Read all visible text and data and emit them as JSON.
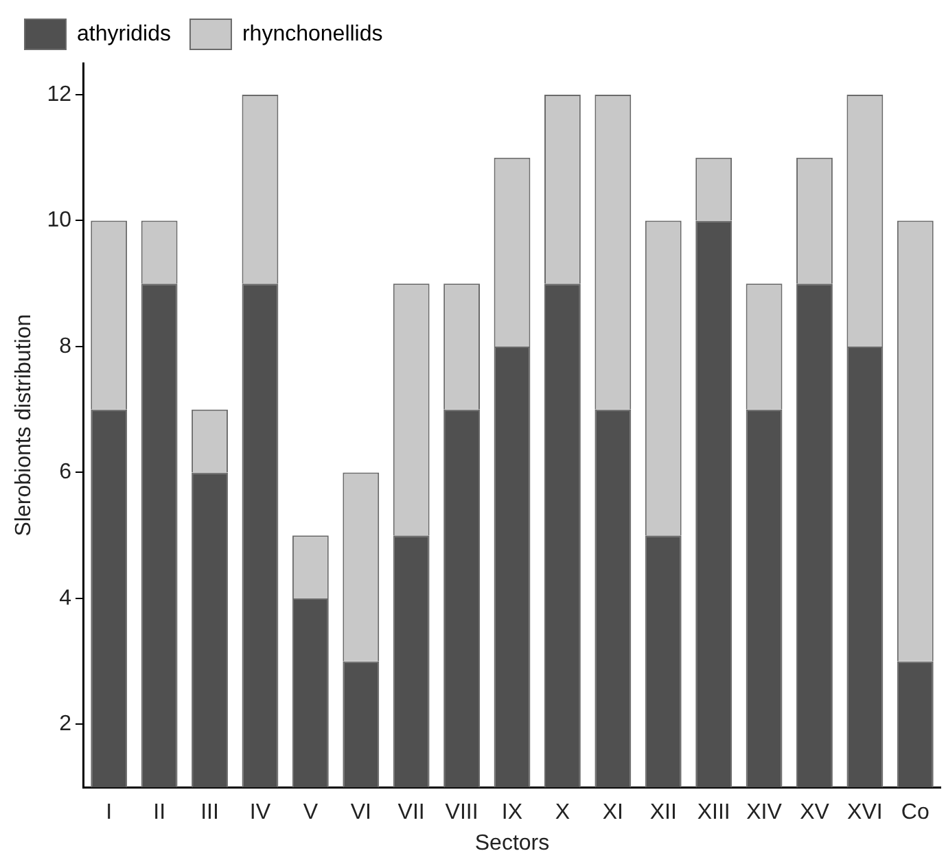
{
  "chart_data": {
    "type": "bar",
    "stacked": true,
    "xlabel": "Sectors",
    "ylabel": "Slerobionts distribution",
    "categories": [
      "I",
      "II",
      "III",
      "IV",
      "V",
      "VI",
      "VII",
      "VIII",
      "IX",
      "X",
      "XI",
      "XII",
      "XIII",
      "XIV",
      "XV",
      "XVI",
      "Co"
    ],
    "series": [
      {
        "name": "athyridids",
        "color": "#505050",
        "values": [
          7,
          9,
          6,
          9,
          4,
          3,
          5,
          7,
          8,
          9,
          7,
          5,
          10,
          7,
          9,
          8,
          3
        ]
      },
      {
        "name": "rhynchonellids",
        "color": "#c8c8c8",
        "values": [
          3,
          1,
          1,
          3,
          1,
          3,
          4,
          2,
          3,
          3,
          5,
          5,
          1,
          2,
          2,
          4,
          7
        ]
      }
    ],
    "ylim": [
      1,
      12.5
    ],
    "yticks": [
      2,
      4,
      6,
      8,
      10,
      12
    ],
    "grid": false,
    "legend": "top"
  }
}
